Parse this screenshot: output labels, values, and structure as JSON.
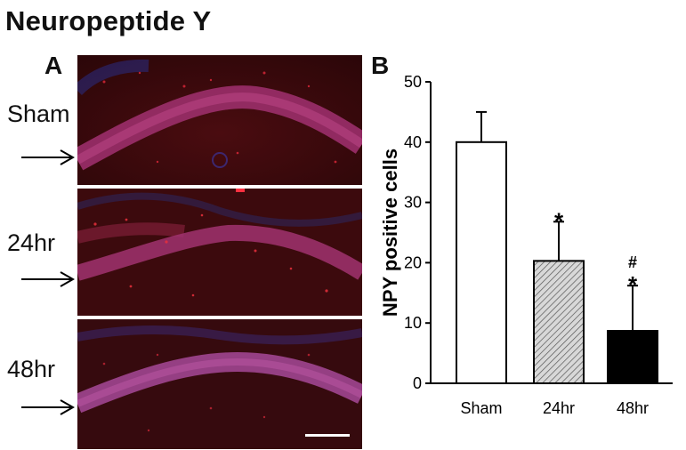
{
  "figure_title": "Neuropeptide Y",
  "panel_a": {
    "letter": "A",
    "rows": [
      "Sham",
      "24hr",
      "48hr"
    ]
  },
  "colors": {
    "micro_bg": "#3a0a0c",
    "micro_band": "#b33a73",
    "micro_dots": "#e02030",
    "micro_blue": "#3a3ab0"
  },
  "icons": [
    "arrow-right-icon"
  ],
  "chart_data": {
    "type": "bar",
    "panel_letter": "B",
    "title": "",
    "xlabel": "",
    "ylabel": "NPY positive cells",
    "categories": [
      "Sham",
      "24hr",
      "48hr"
    ],
    "values": [
      40,
      20.3,
      8.7
    ],
    "error_bars": [
      5,
      6.5,
      7.5
    ],
    "bar_fills": [
      "white",
      "hatched-gray",
      "black"
    ],
    "ylim": [
      0,
      50
    ],
    "yticks": [
      0,
      10,
      20,
      30,
      40,
      50
    ],
    "annotations": [
      {
        "category": "24hr",
        "text": "*"
      },
      {
        "category": "48hr",
        "text": "#"
      },
      {
        "category": "48hr",
        "text": "*"
      }
    ],
    "grid": false,
    "legend": "none"
  }
}
